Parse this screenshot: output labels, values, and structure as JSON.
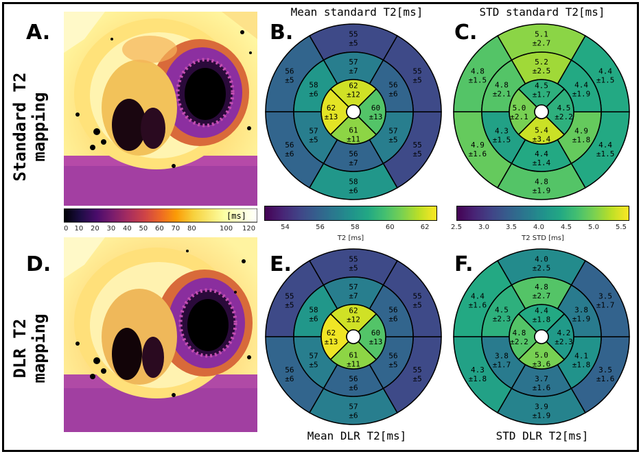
{
  "labels": {
    "A": "A.",
    "B": "B.",
    "C": "C.",
    "D": "D.",
    "E": "E.",
    "F": "F."
  },
  "row_labels": {
    "top_line1": "Standard T2",
    "top_line2": "mapping",
    "bottom_line1": "DLR T2",
    "bottom_line2": "mapping"
  },
  "titles": {
    "mean_standard": "Mean standard T2[ms]",
    "std_standard": "STD standard T2[ms]",
    "mean_dlr": "Mean DLR T2[ms]",
    "std_dlr": "STD DLR T2[ms]"
  },
  "map_colorbar": {
    "unit": "[ms]",
    "ticks": [
      "0",
      "10",
      "20",
      "30",
      "40",
      "50",
      "60",
      "70",
      "80",
      "100",
      "120"
    ]
  },
  "colorbars": {
    "mean": {
      "label": "T2 [ms]",
      "ticks": [
        "54",
        "56",
        "58",
        "60",
        "62"
      ],
      "range": [
        52.8,
        62.7
      ]
    },
    "std": {
      "label": "T2 STD [ms]",
      "ticks": [
        "2.5",
        "3.0",
        "3.5",
        "4.0",
        "4.5",
        "5.0",
        "5.5"
      ],
      "range": [
        2.5,
        5.65
      ]
    }
  },
  "colors": {
    "viridis": [
      "#440154",
      "#482475",
      "#414487",
      "#355f8d",
      "#2a788e",
      "#21918c",
      "#22a884",
      "#44bf70",
      "#7ad151",
      "#bddf26",
      "#fde725"
    ]
  },
  "chart_data": [
    {
      "type": "bullseye",
      "title": "Mean standard T2[ms]",
      "outer": [
        {
          "mean": "55",
          "sd": "±5",
          "v": 55
        },
        {
          "mean": "56",
          "sd": "±5",
          "v": 56
        },
        {
          "mean": "56",
          "sd": "±6",
          "v": 56
        },
        {
          "mean": "58",
          "sd": "±6",
          "v": 58
        },
        {
          "mean": "55",
          "sd": "±5",
          "v": 55
        },
        {
          "mean": "55",
          "sd": "±5",
          "v": 55
        }
      ],
      "middle": [
        {
          "mean": "57",
          "sd": "±7",
          "v": 57
        },
        {
          "mean": "58",
          "sd": "±6",
          "v": 58
        },
        {
          "mean": "57",
          "sd": "±5",
          "v": 57
        },
        {
          "mean": "56",
          "sd": "±7",
          "v": 56
        },
        {
          "mean": "57",
          "sd": "±5",
          "v": 57
        },
        {
          "mean": "56",
          "sd": "±6",
          "v": 56
        }
      ],
      "inner": [
        {
          "mean": "62",
          "sd": "±12",
          "v": 62
        },
        {
          "mean": "62",
          "sd": "±13",
          "v": 62.3
        },
        {
          "mean": "61",
          "sd": "±11",
          "v": 61
        },
        {
          "mean": "60",
          "sd": "±13",
          "v": 60
        }
      ]
    },
    {
      "type": "bullseye",
      "title": "STD standard T2[ms]",
      "outer": [
        {
          "mean": "5.1",
          "sd": "±2.7",
          "v": 5.1
        },
        {
          "mean": "4.8",
          "sd": "±1.5",
          "v": 4.8
        },
        {
          "mean": "4.9",
          "sd": "±1.6",
          "v": 4.9
        },
        {
          "mean": "4.8",
          "sd": "±1.9",
          "v": 4.8
        },
        {
          "mean": "4.4",
          "sd": "±1.5",
          "v": 4.4
        },
        {
          "mean": "4.4",
          "sd": "±1.5",
          "v": 4.4
        }
      ],
      "middle": [
        {
          "mean": "5.2",
          "sd": "±2.5",
          "v": 5.2
        },
        {
          "mean": "4.8",
          "sd": "±2.1",
          "v": 4.8
        },
        {
          "mean": "4.3",
          "sd": "±1.5",
          "v": 4.3
        },
        {
          "mean": "4.4",
          "sd": "±1.4",
          "v": 4.4
        },
        {
          "mean": "4.9",
          "sd": "±1.8",
          "v": 4.9
        },
        {
          "mean": "4.4",
          "sd": "±1.9",
          "v": 4.4
        }
      ],
      "inner": [
        {
          "mean": "4.5",
          "sd": "±1.7",
          "v": 4.5
        },
        {
          "mean": "5.0",
          "sd": "±2.1",
          "v": 5.0
        },
        {
          "mean": "5.4",
          "sd": "±3.4",
          "v": 5.4
        },
        {
          "mean": "4.5",
          "sd": "±2.2",
          "v": 4.5
        }
      ]
    },
    {
      "type": "bullseye",
      "title": "Mean DLR T2[ms]",
      "outer": [
        {
          "mean": "55",
          "sd": "±5",
          "v": 55
        },
        {
          "mean": "55",
          "sd": "±5",
          "v": 55
        },
        {
          "mean": "56",
          "sd": "±6",
          "v": 56
        },
        {
          "mean": "57",
          "sd": "±6",
          "v": 57
        },
        {
          "mean": "55",
          "sd": "±5",
          "v": 55
        },
        {
          "mean": "55",
          "sd": "±5",
          "v": 55
        }
      ],
      "middle": [
        {
          "mean": "57",
          "sd": "±7",
          "v": 57
        },
        {
          "mean": "58",
          "sd": "±6",
          "v": 58
        },
        {
          "mean": "57",
          "sd": "±5",
          "v": 57
        },
        {
          "mean": "56",
          "sd": "±6",
          "v": 56
        },
        {
          "mean": "56",
          "sd": "±5",
          "v": 56
        },
        {
          "mean": "56",
          "sd": "±6",
          "v": 56
        }
      ],
      "inner": [
        {
          "mean": "62",
          "sd": "±12",
          "v": 62
        },
        {
          "mean": "62",
          "sd": "±13",
          "v": 62.5
        },
        {
          "mean": "61",
          "sd": "±11",
          "v": 61
        },
        {
          "mean": "60",
          "sd": "±13",
          "v": 60
        }
      ]
    },
    {
      "type": "bullseye",
      "title": "STD DLR T2[ms]",
      "outer": [
        {
          "mean": "4.0",
          "sd": "±2.5",
          "v": 4.0
        },
        {
          "mean": "4.4",
          "sd": "±1.6",
          "v": 4.4
        },
        {
          "mean": "4.3",
          "sd": "±1.8",
          "v": 4.3
        },
        {
          "mean": "3.9",
          "sd": "±1.9",
          "v": 3.9
        },
        {
          "mean": "3.5",
          "sd": "±1.6",
          "v": 3.5
        },
        {
          "mean": "3.5",
          "sd": "±1.7",
          "v": 3.5
        }
      ],
      "middle": [
        {
          "mean": "4.8",
          "sd": "±2.7",
          "v": 4.8
        },
        {
          "mean": "4.5",
          "sd": "±2.3",
          "v": 4.5
        },
        {
          "mean": "3.8",
          "sd": "±1.7",
          "v": 3.8
        },
        {
          "mean": "3.7",
          "sd": "±1.6",
          "v": 3.7
        },
        {
          "mean": "4.1",
          "sd": "±1.8",
          "v": 4.1
        },
        {
          "mean": "3.8",
          "sd": "±1.9",
          "v": 3.8
        }
      ],
      "inner": [
        {
          "mean": "4.4",
          "sd": "±1.8",
          "v": 4.4
        },
        {
          "mean": "4.8",
          "sd": "±2.2",
          "v": 4.8
        },
        {
          "mean": "5.0",
          "sd": "±3.6",
          "v": 5.0
        },
        {
          "mean": "4.2",
          "sd": "±2.3",
          "v": 4.2
        }
      ]
    }
  ]
}
